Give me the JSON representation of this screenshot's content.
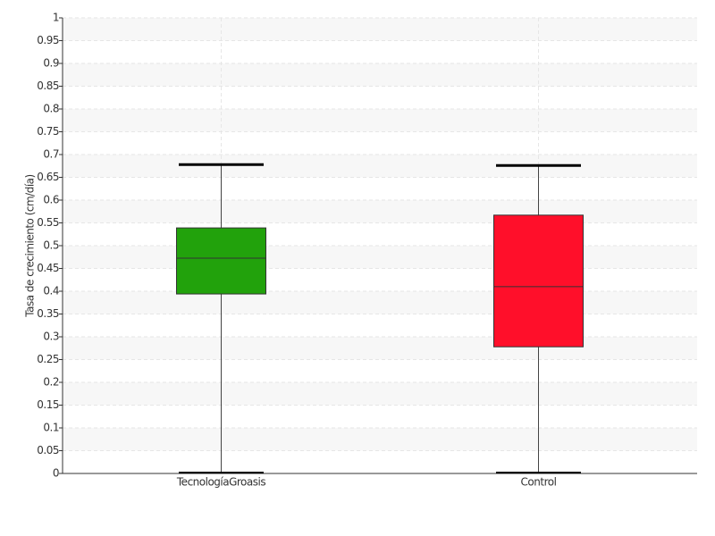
{
  "chart_data": {
    "type": "box",
    "y_label": "Tasa de crecimiento (cm/día)",
    "categories": [
      "TecnologíaGroasis",
      "Control"
    ],
    "boxes": [
      {
        "min": 0,
        "q1": 0.394,
        "median": 0.4725,
        "q3": 0.539,
        "max": 0.678,
        "color": "#22a20c"
      },
      {
        "min": 0,
        "q1": 0.278,
        "median": 0.41,
        "q3": 0.567,
        "max": 0.676,
        "color": "#ff0f2a"
      }
    ],
    "ylim": [
      0,
      1
    ],
    "yticks": [
      0,
      0.05,
      0.1,
      0.15,
      0.2,
      0.25,
      0.3,
      0.35,
      0.4,
      0.45,
      0.5,
      0.55,
      0.6,
      0.65,
      0.7,
      0.75,
      0.8,
      0.85,
      0.9,
      0.95,
      1
    ],
    "grid": true
  }
}
